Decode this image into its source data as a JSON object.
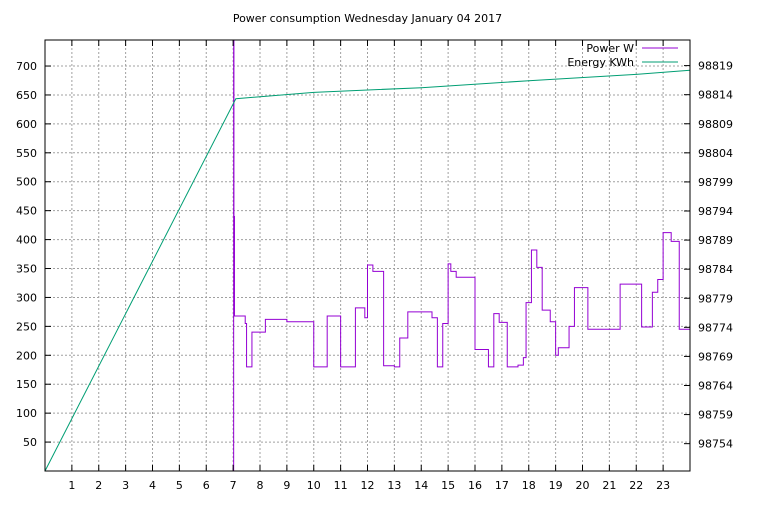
{
  "chart_data": {
    "type": "line",
    "title": "Power consumption Wednesday January 04 2017",
    "x_ticks": [
      1,
      2,
      3,
      4,
      5,
      6,
      7,
      8,
      9,
      10,
      11,
      12,
      13,
      14,
      15,
      16,
      17,
      18,
      19,
      20,
      21,
      22,
      23
    ],
    "xlim": [
      0,
      24
    ],
    "y_left_ticks": [
      50,
      100,
      150,
      200,
      250,
      300,
      350,
      400,
      450,
      500,
      550,
      600,
      650,
      700
    ],
    "y_left_lim": [
      0,
      745
    ],
    "y_right_ticks": [
      98754,
      98759,
      98764,
      98769,
      98774,
      98779,
      98784,
      98789,
      98794,
      98799,
      98804,
      98809,
      98814,
      98819
    ],
    "y_right_lim": [
      98749.3,
      98823.4
    ],
    "grid": true,
    "legend_position": "top-right",
    "colors": {
      "power": "#9400d3",
      "energy": "#009e73"
    },
    "series": [
      {
        "name": "Power W",
        "axis": "left",
        "step": true,
        "x": [
          0,
          7.02,
          7.03,
          7.05,
          7.1,
          7.2,
          7.45,
          7.5,
          7.7,
          7.9,
          8.2,
          8.6,
          8.8,
          9.0,
          10.0,
          10.2,
          10.5,
          11.0,
          11.4,
          11.55,
          11.8,
          11.9,
          12.0,
          12.2,
          12.6,
          12.9,
          13.0,
          13.2,
          13.5,
          13.8,
          14.4,
          14.6,
          14.8,
          15.0,
          15.1,
          15.3,
          16.0,
          16.4,
          16.5,
          16.7,
          16.9,
          17.2,
          17.6,
          17.8,
          17.9,
          18.1,
          18.3,
          18.5,
          18.8,
          19.0,
          19.1,
          19.5,
          19.7,
          20.0,
          20.2,
          20.6,
          21.0,
          21.4,
          21.9,
          22.2,
          22.4,
          22.6,
          22.8,
          23.0,
          23.3,
          23.6,
          24.0
        ],
        "y": [
          0,
          745,
          440,
          268,
          268,
          268,
          255,
          180,
          240,
          240,
          262,
          262,
          262,
          258,
          180,
          180,
          268,
          180,
          180,
          282,
          282,
          265,
          356,
          345,
          182,
          182,
          180,
          230,
          275,
          275,
          265,
          180,
          255,
          358,
          345,
          335,
          210,
          210,
          180,
          272,
          257,
          180,
          183,
          196,
          291,
          382,
          352,
          278,
          258,
          200,
          213,
          250,
          317,
          317,
          245,
          245,
          245,
          323,
          323,
          249,
          249,
          309,
          331,
          412,
          397,
          245,
          245
        ]
      },
      {
        "name": "Energy KWh",
        "axis": "right",
        "x": [
          0,
          7.1,
          10.0,
          14.0,
          18.0,
          22.0,
          24.0
        ],
        "y": [
          98749.3,
          98813.3,
          98814.4,
          98815.2,
          98816.4,
          98817.5,
          98818.2
        ]
      }
    ]
  }
}
